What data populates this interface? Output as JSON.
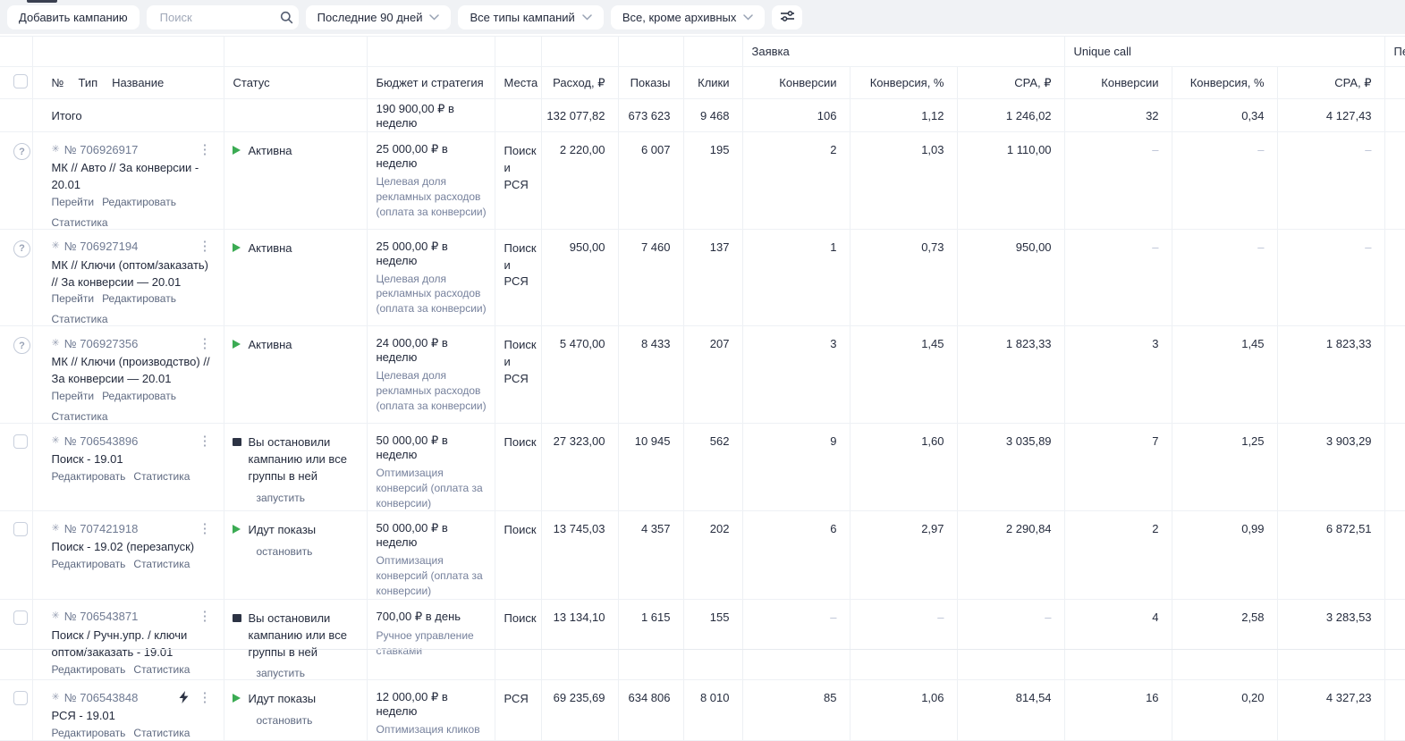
{
  "toolbar": {
    "add_campaign_label": "Добавить кампанию",
    "search_placeholder": "Поиск",
    "date_filter": "Последние 90 дней",
    "type_filter": "Все типы кампаний",
    "archive_filter": "Все, кроме архивных"
  },
  "colors": {
    "accent_green": "#3bab53",
    "stop_dark": "#2c3344",
    "link_muted": "#5e6980"
  },
  "table": {
    "group_headers": {
      "zayavka": "Заявка",
      "unique_call": "Unique call",
      "next_clipped": "Пе"
    },
    "columns": {
      "num": "№",
      "type": "Тип",
      "name": "Название",
      "status": "Статус",
      "budget": "Бюджет и стратегия",
      "places": "Места",
      "cost": "Расход, ₽",
      "shows": "Показы",
      "clicks": "Клики",
      "conversions": "Конверсии",
      "conversion_pct": "Конверсия, %",
      "cpa": "CPA, ₽"
    },
    "totals": {
      "label": "Итого",
      "budget": "190 900,00 ₽ в неделю",
      "cost": "132 077,82",
      "shows": "673 623",
      "clicks": "9 468",
      "z_conv": "106",
      "z_rate": "1,12",
      "z_cpa": "1 246,02",
      "u_conv": "32",
      "u_rate": "0,34",
      "u_cpa": "4 127,43"
    },
    "rows": [
      {
        "left": "help",
        "number": "№ 706926917",
        "name": "МК // Авто // За конверсии - 20.01",
        "links": [
          "Перейти",
          "Редактировать",
          "Статистика"
        ],
        "bolt": false,
        "status": "Активна",
        "status_kind": "active",
        "action": "",
        "budget": "25 000,00 ₽ в неделю",
        "strategy": "Целевая доля рекламных расходов (оплата за конверсии)",
        "places": "Поиск и РСЯ",
        "cost": "2 220,00",
        "shows": "6 007",
        "clicks": "195",
        "z_conv": "2",
        "z_rate": "1,03",
        "z_cpa": "1 110,00",
        "u_conv": "–",
        "u_rate": "–",
        "u_cpa": "–"
      },
      {
        "left": "help",
        "number": "№ 706927194",
        "name": "МК // Ключи (оптом/заказать) // За конверсии — 20.01",
        "links": [
          "Перейти",
          "Редактировать",
          "Статистика"
        ],
        "bolt": false,
        "status": "Активна",
        "status_kind": "active",
        "action": "",
        "budget": "25 000,00 ₽ в неделю",
        "strategy": "Целевая доля рекламных расходов (оплата за конверсии)",
        "places": "Поиск и РСЯ",
        "cost": "950,00",
        "shows": "7 460",
        "clicks": "137",
        "z_conv": "1",
        "z_rate": "0,73",
        "z_cpa": "950,00",
        "u_conv": "–",
        "u_rate": "–",
        "u_cpa": "–"
      },
      {
        "left": "help",
        "number": "№ 706927356",
        "name": "МК // Ключи (производство) // За конверсии — 20.01",
        "links": [
          "Перейти",
          "Редактировать",
          "Статистика"
        ],
        "bolt": false,
        "status": "Активна",
        "status_kind": "active",
        "action": "",
        "budget": "24 000,00 ₽ в неделю",
        "strategy": "Целевая доля рекламных расходов (оплата за конверсии)",
        "places": "Поиск и РСЯ",
        "cost": "5 470,00",
        "shows": "8 433",
        "clicks": "207",
        "z_conv": "3",
        "z_rate": "1,45",
        "z_cpa": "1 823,33",
        "u_conv": "3",
        "u_rate": "1,45",
        "u_cpa": "1 823,33"
      },
      {
        "left": "checkbox",
        "number": "№ 706543896",
        "name": "Поиск - 19.01",
        "links": [
          "Редактировать",
          "Статистика"
        ],
        "bolt": false,
        "status": "Вы остановили кампанию или все группы в ней",
        "status_kind": "stopped",
        "action": "запустить",
        "budget": "50 000,00 ₽ в неделю",
        "strategy": "Оптимизация конверсий (оплата за конверсии)",
        "places": "Поиск",
        "cost": "27 323,00",
        "shows": "10 945",
        "clicks": "562",
        "z_conv": "9",
        "z_rate": "1,60",
        "z_cpa": "3 035,89",
        "u_conv": "7",
        "u_rate": "1,25",
        "u_cpa": "3 903,29"
      },
      {
        "left": "checkbox",
        "number": "№ 707421918",
        "name": "Поиск - 19.02 (перезапуск)",
        "links": [
          "Редактировать",
          "Статистика"
        ],
        "bolt": false,
        "status": "Идут показы",
        "status_kind": "running",
        "action": "остановить",
        "budget": "50 000,00 ₽ в неделю",
        "strategy": "Оптимизация конверсий (оплата за конверсии)",
        "places": "Поиск",
        "cost": "13 745,03",
        "shows": "4 357",
        "clicks": "202",
        "z_conv": "6",
        "z_rate": "2,97",
        "z_cpa": "2 290,84",
        "u_conv": "2",
        "u_rate": "0,99",
        "u_cpa": "6 872,51"
      },
      {
        "left": "checkbox",
        "number": "№ 706543871",
        "name": "Поиск / Ручн.упр. / ключи оптом/заказать - 19.01",
        "links": [
          "Редактировать",
          "Статистика"
        ],
        "bolt": false,
        "status": "Вы остановили кампанию или все группы в ней",
        "status_kind": "stopped",
        "action": "запустить",
        "budget": "700,00 ₽ в день",
        "strategy": "Ручное управление ставками",
        "places": "Поиск",
        "cost": "13 134,10",
        "shows": "1 615",
        "clicks": "155",
        "z_conv": "–",
        "z_rate": "–",
        "z_cpa": "–",
        "u_conv": "4",
        "u_rate": "2,58",
        "u_cpa": "3 283,53"
      },
      {
        "left": "checkbox",
        "number": "№ 706543848",
        "name": "РСЯ - 19.01",
        "links": [
          "Редактировать",
          "Статистика"
        ],
        "bolt": true,
        "status": "Идут показы",
        "status_kind": "running",
        "action": "остановить",
        "budget": "12 000,00 ₽ в неделю",
        "strategy": "Оптимизация кликов",
        "places": "РСЯ",
        "cost": "69 235,69",
        "shows": "634 806",
        "clicks": "8 010",
        "z_conv": "85",
        "z_rate": "1,06",
        "z_cpa": "814,54",
        "u_conv": "16",
        "u_rate": "0,20",
        "u_cpa": "4 327,23"
      }
    ]
  }
}
